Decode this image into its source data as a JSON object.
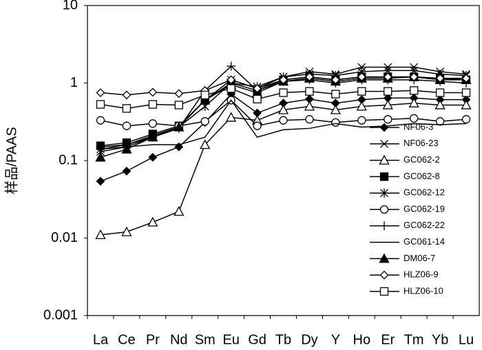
{
  "chart_data": {
    "type": "line",
    "y_label": "样品/PAAS",
    "log_scale": true,
    "legend": "right",
    "categories": [
      "La",
      "Ce",
      "Pr",
      "Nd",
      "Sm",
      "Eu",
      "Gd",
      "Tb",
      "Dy",
      "Y",
      "Ho",
      "Er",
      "Tm",
      "Yb",
      "Lu"
    ],
    "ylim": [
      0.001,
      10
    ],
    "yticks": [
      0.001,
      0.01,
      0.1,
      1,
      10
    ],
    "series": [
      {
        "name": "NF06-3",
        "color": "#000000",
        "marker": "diamond-filled",
        "values": [
          0.054,
          0.073,
          0.11,
          0.15,
          0.31,
          0.72,
          0.41,
          0.55,
          0.62,
          0.55,
          0.61,
          0.64,
          0.64,
          0.61,
          0.61
        ]
      },
      {
        "name": "NF06-23",
        "color": "#000000",
        "marker": "x",
        "values": [
          0.13,
          0.15,
          0.2,
          0.27,
          0.6,
          1.1,
          0.85,
          1.2,
          1.4,
          1.3,
          1.6,
          1.6,
          1.6,
          1.4,
          1.3
        ]
      },
      {
        "name": "GC062-2",
        "color": "#000000",
        "marker": "triangle-open",
        "values": [
          0.011,
          0.012,
          0.016,
          0.022,
          0.16,
          0.36,
          0.33,
          0.45,
          0.5,
          0.45,
          0.5,
          0.52,
          0.55,
          0.52,
          0.52
        ]
      },
      {
        "name": "GC062-8",
        "color": "#000000",
        "marker": "square-filled",
        "values": [
          0.155,
          0.17,
          0.22,
          0.28,
          0.6,
          1.0,
          0.8,
          1.1,
          1.2,
          1.1,
          1.2,
          1.2,
          1.2,
          1.15,
          1.1
        ]
      },
      {
        "name": "GC062-12",
        "color": "#000000",
        "marker": "asterisk",
        "values": [
          0.14,
          0.16,
          0.21,
          0.27,
          0.5,
          1.0,
          0.9,
          1.2,
          1.3,
          1.25,
          1.4,
          1.45,
          1.45,
          1.3,
          1.25
        ]
      },
      {
        "name": "GC062-19",
        "color": "#000000",
        "marker": "circle-open",
        "values": [
          0.33,
          0.28,
          0.3,
          0.28,
          0.32,
          0.6,
          0.28,
          0.33,
          0.34,
          0.31,
          0.33,
          0.34,
          0.35,
          0.32,
          0.34
        ]
      },
      {
        "name": "GC062-22",
        "color": "#000000",
        "marker": "plus",
        "values": [
          0.15,
          0.16,
          0.2,
          0.26,
          0.8,
          1.65,
          0.8,
          1.05,
          1.1,
          1.0,
          1.1,
          1.1,
          1.1,
          1.05,
          1.0
        ]
      },
      {
        "name": "GC061-14",
        "color": "#000000",
        "marker": "none",
        "values": [
          0.14,
          0.15,
          0.16,
          0.16,
          0.2,
          0.6,
          0.2,
          0.25,
          0.26,
          0.3,
          0.27,
          0.28,
          0.3,
          0.29,
          0.3
        ]
      },
      {
        "name": "DM06-7",
        "color": "#000000",
        "marker": "triangle-filled",
        "values": [
          0.11,
          0.14,
          0.2,
          0.27,
          0.6,
          0.95,
          0.75,
          1.05,
          1.15,
          1.05,
          1.15,
          1.15,
          1.2,
          1.1,
          1.1
        ]
      },
      {
        "name": "HLZ06-9",
        "color": "#000000",
        "marker": "diamond-open",
        "values": [
          0.75,
          0.7,
          0.76,
          0.73,
          0.8,
          1.1,
          0.85,
          1.1,
          1.2,
          1.1,
          1.2,
          1.2,
          1.2,
          1.15,
          1.15
        ]
      },
      {
        "name": "HLZ06-10",
        "color": "#000000",
        "marker": "square-open",
        "values": [
          0.53,
          0.47,
          0.53,
          0.52,
          0.7,
          0.85,
          0.62,
          0.75,
          0.78,
          0.72,
          0.78,
          0.78,
          0.8,
          0.75,
          0.75
        ]
      }
    ]
  }
}
